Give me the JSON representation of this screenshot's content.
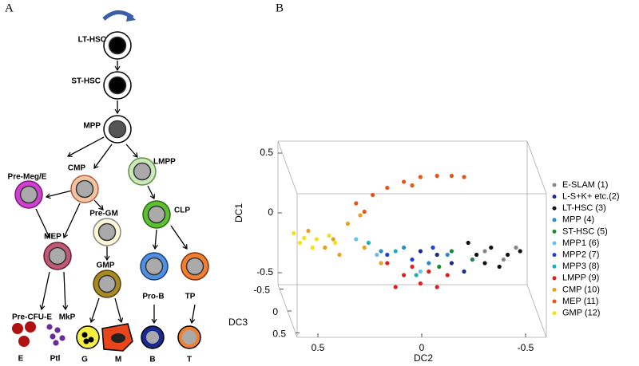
{
  "panel_labels": [
    "A",
    "B"
  ],
  "diagram": {
    "nodes": [
      {
        "label": "LT-HSC"
      },
      {
        "label": "ST-HSC"
      },
      {
        "label": "MPP"
      },
      {
        "label": "Pre-Meg/E"
      },
      {
        "label": "CMP"
      },
      {
        "label": "LMPP"
      },
      {
        "label": "Pre-GM"
      },
      {
        "label": "CLP"
      },
      {
        "label": "MEP"
      },
      {
        "label": "GMP"
      },
      {
        "label": "Pro-B"
      },
      {
        "label": "TP"
      },
      {
        "label": "Pre-CFU-E"
      },
      {
        "label": "MkP"
      },
      {
        "label": "E"
      },
      {
        "label": "Ptl"
      },
      {
        "label": "G"
      },
      {
        "label": "M"
      },
      {
        "label": "B"
      },
      {
        "label": "T"
      }
    ]
  },
  "chart_data": {
    "type": "scatter3d",
    "x_label": "DC2",
    "y_label": "DC1",
    "z_label": "DC3",
    "xlim": [
      0.6,
      -0.6
    ],
    "ylim": [
      -0.6,
      0.6
    ],
    "zlim": [
      -0.6,
      0.6
    ],
    "xticks": [
      0.5,
      0,
      -0.5
    ],
    "yticks": [
      -0.5,
      0,
      0.5
    ],
    "zticks": [
      -0.5,
      0,
      0.5
    ],
    "series": [
      {
        "name": "E-SLAM (1)",
        "color": "#888888",
        "x": [
          -0.35,
          -0.44,
          -0.5
        ],
        "values": [
          -0.1,
          -0.17,
          -0.07
        ]
      },
      {
        "name": "L-S+K+ etc.(2)",
        "color": "#1a2a8a",
        "x": [
          -0.12,
          -0.19,
          -0.04,
          -0.25
        ],
        "values": [
          -0.13,
          -0.2,
          -0.1,
          -0.27
        ]
      },
      {
        "name": "LT-HSC (3)",
        "color": "#111111",
        "x": [
          -0.31,
          -0.38,
          -0.46,
          -0.52,
          -0.35,
          -0.42,
          -0.27
        ],
        "values": [
          -0.13,
          -0.07,
          -0.13,
          -0.1,
          -0.2,
          -0.23,
          -0.03
        ]
      },
      {
        "name": "MPP (4)",
        "color": "#2e8bc8",
        "x": [
          0.15,
          0.04,
          -0.08,
          -0.17
        ],
        "values": [
          -0.1,
          -0.07,
          -0.2,
          -0.13
        ]
      },
      {
        "name": "ST-HSC (5)",
        "color": "#1a8a3a",
        "x": [
          -0.19,
          -0.29,
          -0.13
        ],
        "values": [
          -0.1,
          -0.17,
          -0.23
        ]
      },
      {
        "name": "MPP1 (6)",
        "color": "#6ac0e8",
        "x": [
          0.27,
          0.17,
          -0.04
        ],
        "values": [
          0,
          -0.13,
          -0.27
        ]
      },
      {
        "name": "MPP2 (7)",
        "color": "#2040d0",
        "x": [
          0.12,
          0,
          -0.1
        ],
        "values": [
          -0.13,
          -0.17,
          -0.07
        ]
      },
      {
        "name": "MPP3 (8)",
        "color": "#20b0b0",
        "x": [
          0.21,
          0.08,
          -0.02
        ],
        "values": [
          -0.03,
          -0.1,
          -0.3
        ]
      },
      {
        "name": "LMPP (9)",
        "color": "#e02020",
        "x": [
          0.12,
          0.04,
          -0.04,
          -0.12,
          0,
          -0.17,
          0.08,
          -0.08
        ],
        "values": [
          -0.2,
          -0.3,
          -0.37,
          -0.4,
          -0.23,
          -0.3,
          -0.4,
          -0.27
        ]
      },
      {
        "name": "CMP (10)",
        "color": "#e8a020",
        "x": [
          0.5,
          0.38,
          0.31,
          0.23,
          0.15,
          0.35,
          0.25,
          0.42
        ],
        "values": [
          0.07,
          0,
          0.13,
          -0.07,
          -0.2,
          -0.13,
          0.2,
          -0.07
        ]
      },
      {
        "name": "MEP (11)",
        "color": "#e8541c",
        "x": [
          0.27,
          0.19,
          0.12,
          0.04,
          -0.04,
          -0.12,
          -0.19,
          -0.25,
          0.23,
          0
        ],
        "values": [
          0.3,
          0.37,
          0.43,
          0.48,
          0.52,
          0.53,
          0.53,
          0.52,
          0.23,
          0.45
        ]
      },
      {
        "name": "GMP (12)",
        "color": "#f5e020",
        "x": [
          0.57,
          0.52,
          0.46,
          0.4,
          0.48,
          0.54,
          0.37
        ],
        "values": [
          0.05,
          0.01,
          0,
          0.03,
          -0.07,
          -0.03,
          -0.03
        ]
      }
    ]
  }
}
